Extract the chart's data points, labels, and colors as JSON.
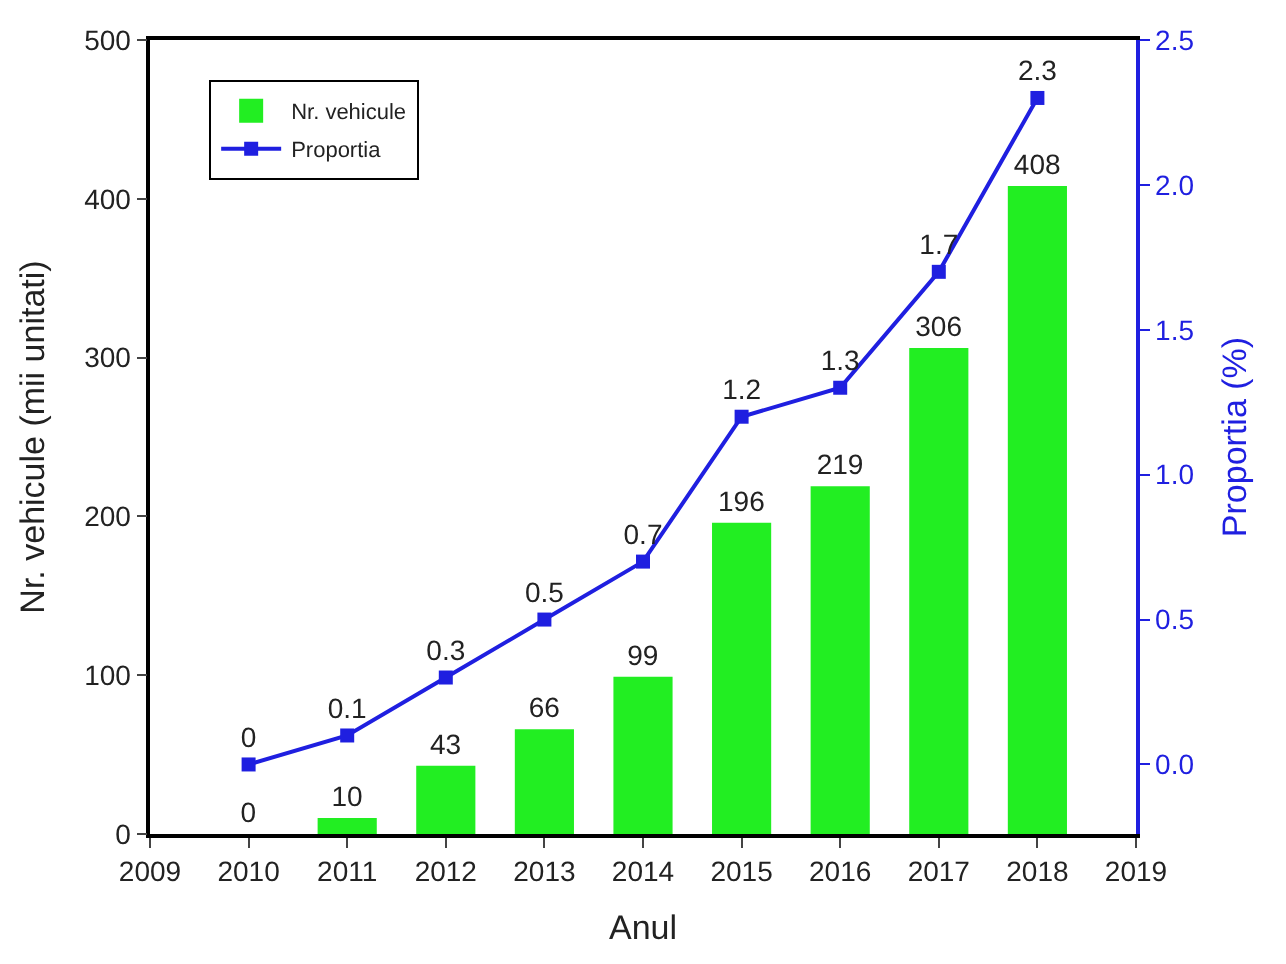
{
  "chart_data": {
    "type": "bar",
    "xlabel": "Anul",
    "ylabel": "Nr. vehicule (mii unitati)",
    "y2label": "Proportia (%)",
    "x": [
      2010,
      2011,
      2012,
      2013,
      2014,
      2015,
      2016,
      2017,
      2018
    ],
    "series": [
      {
        "name": "Nr. vehicule",
        "color": "#22ee22",
        "values": [
          0,
          10,
          43,
          66,
          99,
          196,
          219,
          306,
          408
        ]
      },
      {
        "name": "Proportia",
        "type": "line",
        "axis": "y2",
        "color": "#1f1fe0",
        "marker": "square",
        "line_style": "solid",
        "values": [
          0,
          0.1,
          0.3,
          0.5,
          0.7,
          1.2,
          1.3,
          1.7,
          2.3
        ]
      }
    ],
    "xlim": [
      2009,
      2019
    ],
    "xticks": [
      2009,
      2010,
      2011,
      2012,
      2013,
      2014,
      2015,
      2016,
      2017,
      2018,
      2019
    ],
    "ylim": [
      0,
      500
    ],
    "yticks": [
      0,
      100,
      200,
      300,
      400,
      500
    ],
    "y2lim": [
      -0.24,
      2.5
    ],
    "y2ticks": [
      {
        "value": 0,
        "label": "0.0"
      },
      0.5,
      {
        "value": 1,
        "label": "1.0"
      },
      1.5,
      {
        "value": 2,
        "label": "2.0"
      },
      2.5
    ],
    "data_labels": true,
    "legend": "top left"
  }
}
